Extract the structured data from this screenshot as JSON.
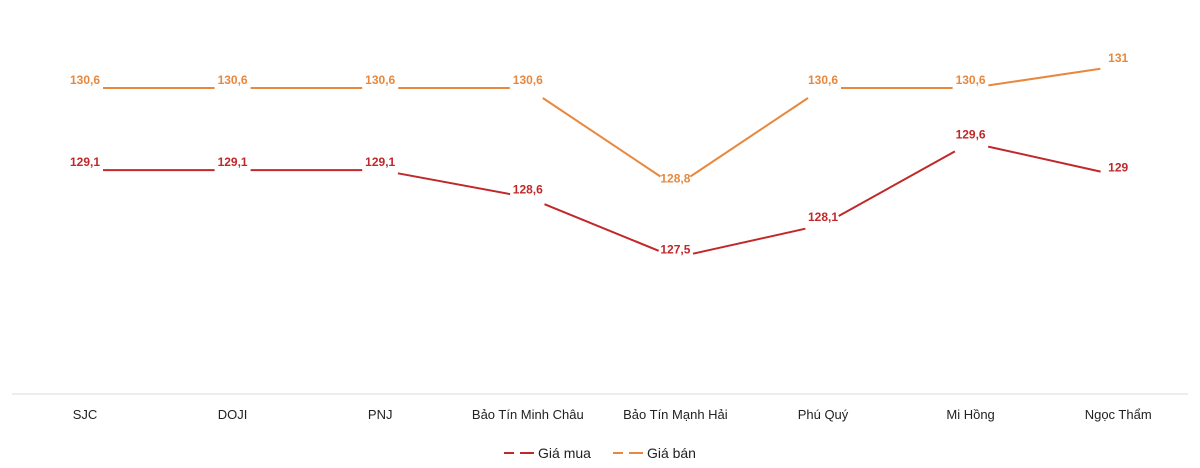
{
  "chart_data": {
    "type": "line",
    "title": "",
    "xlabel": "",
    "ylabel": "",
    "categories": [
      "SJC",
      "DOJI",
      "PNJ",
      "Bảo Tín Minh Châu",
      "Bảo Tín Mạnh Hải",
      "Phú Quý",
      "Mi Hồng",
      "Ngọc Thẩm"
    ],
    "series": [
      {
        "name": "Giá mua",
        "color": "#C0282A",
        "values": [
          129.1,
          129.1,
          129.1,
          128.6,
          127.5,
          128.1,
          129.6,
          129
        ],
        "labels": [
          "129,1",
          "129,1",
          "129,1",
          "128,6",
          "127,5",
          "128,1",
          "129,6",
          "129"
        ]
      },
      {
        "name": "Giá bán",
        "color": "#E8883E",
        "values": [
          130.6,
          130.6,
          130.6,
          130.6,
          128.8,
          130.6,
          130.6,
          131
        ],
        "labels": [
          "130,6",
          "130,6",
          "130,6",
          "130,6",
          "128,8",
          "130,6",
          "130,6",
          "131"
        ]
      }
    ],
    "grid": false,
    "y_axis_visible": false,
    "legend_position": "bottom"
  },
  "legend": {
    "buy_label": "Giá mua",
    "sell_label": "Giá bán"
  }
}
